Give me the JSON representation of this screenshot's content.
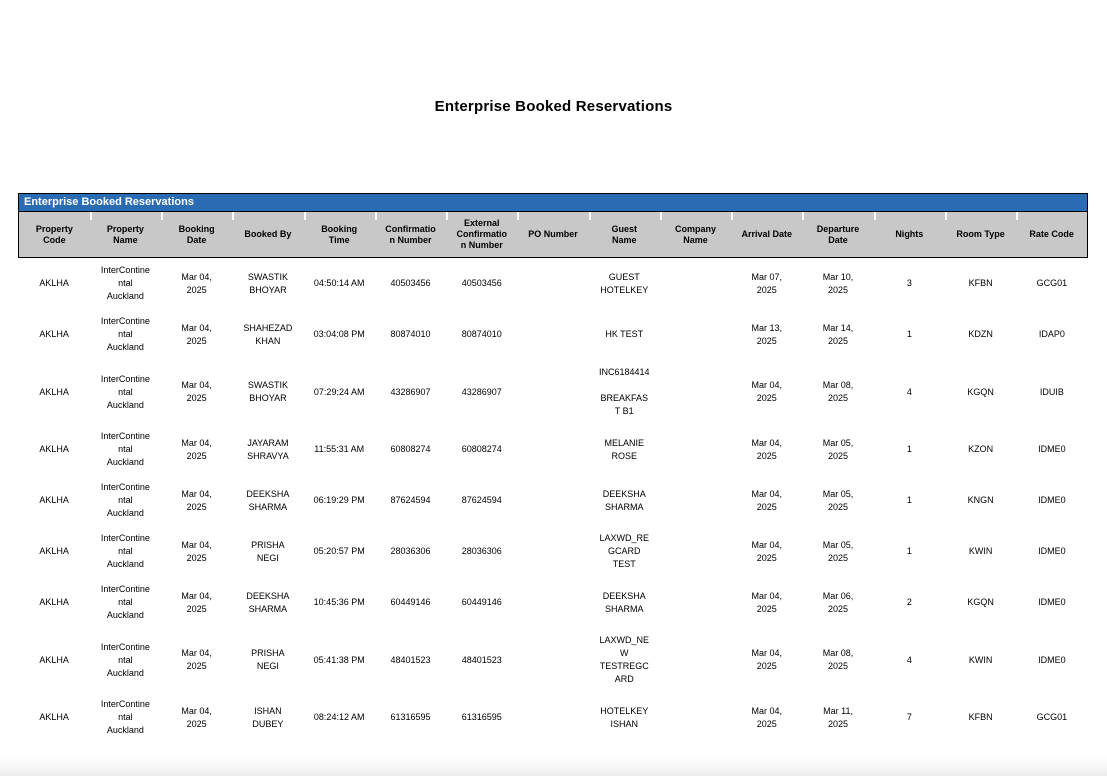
{
  "page": {
    "title": "Enterprise Booked Reservations"
  },
  "colors": {
    "banner_bg": "#2A6CB4",
    "header_bg": "#C8C8C8",
    "border": "#000000"
  },
  "table": {
    "banner": "Enterprise Booked Reservations",
    "columns": [
      {
        "key": "property_code",
        "label": "Property\nCode"
      },
      {
        "key": "property_name",
        "label": "Property\nName"
      },
      {
        "key": "booking_date",
        "label": "Booking\nDate"
      },
      {
        "key": "booked_by",
        "label": "Booked By"
      },
      {
        "key": "booking_time",
        "label": "Booking\nTime"
      },
      {
        "key": "confirmation_number",
        "label": "Confirmatio\nn Number"
      },
      {
        "key": "external_confirmation_number",
        "label": "External\nConfirmatio\nn Number"
      },
      {
        "key": "po_number",
        "label": "PO Number"
      },
      {
        "key": "guest_name",
        "label": "Guest\nName"
      },
      {
        "key": "company_name",
        "label": "Company\nName"
      },
      {
        "key": "arrival_date",
        "label": "Arrival Date"
      },
      {
        "key": "departure_date",
        "label": "Departure\nDate"
      },
      {
        "key": "nights",
        "label": "Nights"
      },
      {
        "key": "room_type",
        "label": "Room Type"
      },
      {
        "key": "rate_code",
        "label": "Rate Code"
      }
    ],
    "rows": [
      {
        "property_code": "AKLHA",
        "property_name": "InterContine\nntal\nAuckland",
        "booking_date": "Mar 04,\n2025",
        "booked_by": "SWASTIK\nBHOYAR",
        "booking_time": "04:50:14 AM",
        "confirmation_number": "40503456",
        "external_confirmation_number": "40503456",
        "po_number": "",
        "guest_name": "GUEST\nHOTELKEY",
        "company_name": "",
        "arrival_date": "Mar 07,\n2025",
        "departure_date": "Mar 10,\n2025",
        "nights": "3",
        "room_type": "KFBN",
        "rate_code": "GCG01"
      },
      {
        "property_code": "AKLHA",
        "property_name": "InterContine\nntal\nAuckland",
        "booking_date": "Mar 04,\n2025",
        "booked_by": "SHAHEZAD\nKHAN",
        "booking_time": "03:04:08 PM",
        "confirmation_number": "80874010",
        "external_confirmation_number": "80874010",
        "po_number": "",
        "guest_name": "HK TEST",
        "company_name": "",
        "arrival_date": "Mar 13,\n2025",
        "departure_date": "Mar 14,\n2025",
        "nights": "1",
        "room_type": "KDZN",
        "rate_code": "IDAP0"
      },
      {
        "property_code": "AKLHA",
        "property_name": "InterContine\nntal\nAuckland",
        "booking_date": "Mar 04,\n2025",
        "booked_by": "SWASTIK\nBHOYAR",
        "booking_time": "07:29:24 AM",
        "confirmation_number": "43286907",
        "external_confirmation_number": "43286907",
        "po_number": "",
        "guest_name": "INC6184414\n\nBREAKFAS\nT B1",
        "company_name": "",
        "arrival_date": "Mar 04,\n2025",
        "departure_date": "Mar 08,\n2025",
        "nights": "4",
        "room_type": "KGQN",
        "rate_code": "IDUIB"
      },
      {
        "property_code": "AKLHA",
        "property_name": "InterContine\nntal\nAuckland",
        "booking_date": "Mar 04,\n2025",
        "booked_by": "JAYARAM\nSHRAVYA",
        "booking_time": "11:55:31 AM",
        "confirmation_number": "60808274",
        "external_confirmation_number": "60808274",
        "po_number": "",
        "guest_name": "MELANIE\nROSE",
        "company_name": "",
        "arrival_date": "Mar 04,\n2025",
        "departure_date": "Mar 05,\n2025",
        "nights": "1",
        "room_type": "KZON",
        "rate_code": "IDME0"
      },
      {
        "property_code": "AKLHA",
        "property_name": "InterContine\nntal\nAuckland",
        "booking_date": "Mar 04,\n2025",
        "booked_by": "DEEKSHA\nSHARMA",
        "booking_time": "06:19:29 PM",
        "confirmation_number": "87624594",
        "external_confirmation_number": "87624594",
        "po_number": "",
        "guest_name": "DEEKSHA\nSHARMA",
        "company_name": "",
        "arrival_date": "Mar 04,\n2025",
        "departure_date": "Mar 05,\n2025",
        "nights": "1",
        "room_type": "KNGN",
        "rate_code": "IDME0"
      },
      {
        "property_code": "AKLHA",
        "property_name": "InterContine\nntal\nAuckland",
        "booking_date": "Mar 04,\n2025",
        "booked_by": "PRISHA\nNEGI",
        "booking_time": "05:20:57 PM",
        "confirmation_number": "28036306",
        "external_confirmation_number": "28036306",
        "po_number": "",
        "guest_name": "LAXWD_RE\nGCARD\nTEST",
        "company_name": "",
        "arrival_date": "Mar 04,\n2025",
        "departure_date": "Mar 05,\n2025",
        "nights": "1",
        "room_type": "KWIN",
        "rate_code": "IDME0"
      },
      {
        "property_code": "AKLHA",
        "property_name": "InterContine\nntal\nAuckland",
        "booking_date": "Mar 04,\n2025",
        "booked_by": "DEEKSHA\nSHARMA",
        "booking_time": "10:45:36 PM",
        "confirmation_number": "60449146",
        "external_confirmation_number": "60449146",
        "po_number": "",
        "guest_name": "DEEKSHA\nSHARMA",
        "company_name": "",
        "arrival_date": "Mar 04,\n2025",
        "departure_date": "Mar 06,\n2025",
        "nights": "2",
        "room_type": "KGQN",
        "rate_code": "IDME0"
      },
      {
        "property_code": "AKLHA",
        "property_name": "InterContine\nntal\nAuckland",
        "booking_date": "Mar 04,\n2025",
        "booked_by": "PRISHA\nNEGI",
        "booking_time": "05:41:38 PM",
        "confirmation_number": "48401523",
        "external_confirmation_number": "48401523",
        "po_number": "",
        "guest_name": "LAXWD_NE\nW\nTESTREGC\nARD",
        "company_name": "",
        "arrival_date": "Mar 04,\n2025",
        "departure_date": "Mar 08,\n2025",
        "nights": "4",
        "room_type": "KWIN",
        "rate_code": "IDME0"
      },
      {
        "property_code": "AKLHA",
        "property_name": "InterContine\nntal\nAuckland",
        "booking_date": "Mar 04,\n2025",
        "booked_by": "ISHAN\nDUBEY",
        "booking_time": "08:24:12 AM",
        "confirmation_number": "61316595",
        "external_confirmation_number": "61316595",
        "po_number": "",
        "guest_name": "HOTELKEY\nISHAN",
        "company_name": "",
        "arrival_date": "Mar 04,\n2025",
        "departure_date": "Mar 11,\n2025",
        "nights": "7",
        "room_type": "KFBN",
        "rate_code": "GCG01"
      }
    ]
  }
}
